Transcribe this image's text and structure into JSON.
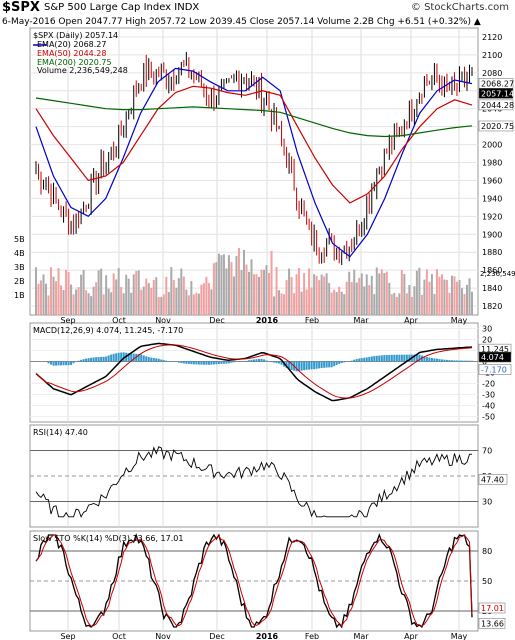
{
  "header": {
    "symbol": "$SPX",
    "name": "S&P 500 Large Cap Index INDX",
    "credit": "© StockCharts.com",
    "quote": "6-May-2016  Open 2047.77  High 2057.72  Low 2039.45  Close 2057.14  Volume 2.2B  Chg +6.51 (+0.32%) ▲"
  },
  "legend_price": [
    "$SPX (Daily) 2057.14",
    "EMA(20) 2068.27",
    "EMA(50) 2044.28",
    "EMA(200) 2020.75",
    "Volume 2,236,549,248"
  ],
  "legend_macd": "MACD(12,26,9) 4.074, 11.245, -7.170",
  "legend_rsi": "RSI(14) 47.40",
  "legend_sto": "Slow STO %K(14) %D(3) 13.66, 17.01",
  "colors": {
    "up": "#000000",
    "down": "#cc0000",
    "ema20": "#0000cc",
    "ema50": "#cc0000",
    "ema200": "#006600",
    "macd": "#000000",
    "signal": "#cc0000",
    "hist": "#3399cc",
    "vol_up": "#aaaaaa",
    "vol_down": "#f2a0a0"
  },
  "chart_data": [
    {
      "type": "line",
      "title": "Price (Daily) with EMA(20), EMA(50), EMA(200) and Volume",
      "x_labels": [
        "Sep",
        "Oct",
        "Nov",
        "Dec",
        "2016",
        "Feb",
        "Mar",
        "Apr",
        "May"
      ],
      "ylim": [
        1810,
        2130
      ],
      "yticks": [
        1820,
        1840,
        1860,
        1880,
        1900,
        1920,
        1940,
        1960,
        1980,
        2000,
        2020,
        2040,
        2060,
        2080,
        2100,
        2120
      ],
      "price_right_labels": [
        "2068.27",
        "2057.14",
        "2044.28",
        "2020.75"
      ],
      "volume_ticks": [
        "1B",
        "2B",
        "3B",
        "4B",
        "5B"
      ],
      "volume_label": "2,236,549",
      "series": [
        {
          "name": "EMA(20)",
          "values": [
            2020,
            1965,
            1930,
            1920,
            1940,
            1985,
            2035,
            2070,
            2085,
            2082,
            2070,
            2060,
            2060,
            2075,
            2060,
            1990,
            1935,
            1890,
            1875,
            1900,
            1940,
            1990,
            2035,
            2060,
            2072,
            2068
          ]
        },
        {
          "name": "EMA(50)",
          "values": [
            2040,
            2010,
            1985,
            1960,
            1965,
            1980,
            2010,
            2040,
            2058,
            2065,
            2063,
            2058,
            2055,
            2060,
            2055,
            2020,
            1985,
            1955,
            1935,
            1945,
            1965,
            1995,
            2020,
            2040,
            2050,
            2044
          ]
        },
        {
          "name": "EMA(200)",
          "values": [
            2052,
            2049,
            2046,
            2043,
            2040,
            2039,
            2039,
            2040,
            2041,
            2042,
            2041,
            2040,
            2039,
            2038,
            2036,
            2030,
            2024,
            2018,
            2013,
            2010,
            2009,
            2010,
            2013,
            2016,
            2019,
            2021
          ]
        }
      ]
    },
    {
      "type": "line",
      "title": "MACD(12,26,9)",
      "ylim": [
        -55,
        35
      ],
      "yticks": [
        30,
        20,
        10,
        0,
        -10,
        -20,
        -30,
        -40,
        -50
      ],
      "right_labels": [
        "11.245",
        "4.074",
        "-7.170"
      ]
    },
    {
      "type": "line",
      "title": "RSI(14)",
      "ylim": [
        10,
        90
      ],
      "yticks": [
        70,
        50,
        30
      ],
      "right_labels": [
        "47.40"
      ]
    },
    {
      "type": "line",
      "title": "Slow STO %K(14) %D(3)",
      "ylim": [
        0,
        100
      ],
      "yticks": [
        80,
        50,
        20
      ],
      "right_labels": [
        "17.01",
        "13.66"
      ]
    }
  ]
}
